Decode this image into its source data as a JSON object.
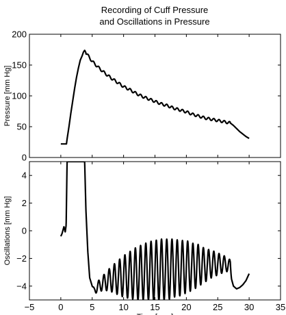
{
  "chart_data": [
    {
      "type": "line",
      "title_lines": [
        "Recording of Cuff Pressure",
        "and Oscillations in Pressure"
      ],
      "xlabel": "",
      "ylabel": "Pressure [mm Hg]",
      "xlim": [
        -5,
        35
      ],
      "ylim": [
        0,
        200
      ],
      "xticks": [
        -5,
        0,
        5,
        10,
        15,
        20,
        25,
        30,
        35
      ],
      "yticks": [
        0,
        50,
        100,
        150,
        200
      ],
      "xtick_labels_shown": false,
      "grid": false,
      "series": [
        {
          "x": [
            0.0,
            0.9,
            1.0,
            1.3,
            1.6,
            1.9,
            2.2,
            2.5,
            2.8,
            3.1,
            3.4,
            3.6,
            3.8,
            4.0,
            4.5,
            5,
            6,
            7,
            8,
            9,
            10,
            11,
            12,
            13,
            14,
            15,
            16,
            17,
            18,
            19,
            20,
            21,
            22,
            23,
            24,
            25,
            26,
            27,
            27.5,
            28,
            28.5,
            29,
            29.5,
            30.0
          ],
          "y": [
            22,
            22,
            30,
            50,
            72,
            92,
            112,
            130,
            145,
            158,
            165,
            171,
            174,
            170,
            163,
            156,
            146,
            137,
            129,
            122,
            115,
            110,
            104,
            99,
            95,
            91,
            87,
            84,
            80,
            77,
            74,
            70,
            67,
            64,
            62,
            60,
            58,
            56,
            52,
            47,
            42,
            38,
            34,
            31
          ],
          "oscillation_amplitude": 2
        }
      ]
    },
    {
      "type": "line",
      "xlabel": "Time [sec.]",
      "ylabel": "Oscillations [mm Hg]",
      "xlim": [
        -5,
        35
      ],
      "ylim": [
        -5,
        5
      ],
      "xticks": [
        -5,
        0,
        5,
        10,
        15,
        20,
        25,
        30,
        35
      ],
      "yticks": [
        -4,
        -2,
        0,
        2,
        4
      ],
      "grid": false,
      "series": [
        {
          "x": [
            0.0,
            0.2,
            0.5,
            0.7,
            0.85,
            1.0,
            1.1,
            3.8,
            4.0,
            4.3,
            4.6,
            5.0,
            5.3,
            5.6,
            6.0,
            7,
            8,
            9,
            10,
            11,
            12,
            13,
            14,
            15,
            16,
            17,
            18,
            19,
            20,
            21,
            22,
            23,
            24,
            25,
            26,
            27,
            27.2,
            27.5,
            28.0,
            28.5,
            29.0,
            29.5,
            30.0
          ],
          "y": [
            -0.4,
            -0.2,
            0.3,
            -0.1,
            0.4,
            5,
            5,
            5,
            1.5,
            -1.5,
            -3.4,
            -4.0,
            -4.3,
            -4.2,
            -4.0,
            -3.7,
            -3.5,
            -3.4,
            -3.3,
            -3.2,
            -3.1,
            -3.0,
            -2.9,
            -2.9,
            -2.8,
            -2.8,
            -2.7,
            -2.7,
            -2.6,
            -2.6,
            -2.5,
            -2.5,
            -2.4,
            -2.4,
            -2.4,
            -2.5,
            -3.5,
            -4.0,
            -4.2,
            -4.1,
            -3.9,
            -3.6,
            -3.1
          ],
          "oscillation_amplitude": [
            0,
            0,
            0,
            0,
            0,
            0,
            0,
            0,
            0,
            0,
            0,
            0,
            0.2,
            0.3,
            0.4,
            0.6,
            0.9,
            1.2,
            1.5,
            1.7,
            1.9,
            2.0,
            2.1,
            2.2,
            2.2,
            2.2,
            2.1,
            2.0,
            1.9,
            1.7,
            1.5,
            1.2,
            1.0,
            0.8,
            0.6,
            0.4,
            0,
            0,
            0,
            0,
            0,
            0,
            0
          ]
        }
      ]
    }
  ]
}
